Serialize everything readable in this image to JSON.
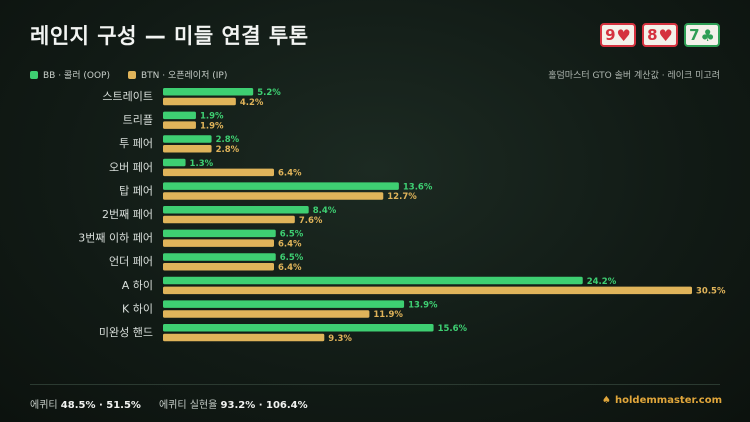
{
  "title": "레인지 구성 — 미들 연결 투톤",
  "board": [
    {
      "rank": "9",
      "suit": "♥",
      "color": "#d5323f"
    },
    {
      "rank": "8",
      "suit": "♥",
      "color": "#d5323f"
    },
    {
      "rank": "7",
      "suit": "♣",
      "color": "#2f9e55"
    }
  ],
  "note": "홀덤마스터 GTO 솔버 계산값 · 레이크 미고려",
  "chart_data": {
    "type": "bar",
    "orientation": "horizontal",
    "categories": [
      "스트레이트",
      "트리플",
      "투 페어",
      "오버 페어",
      "탑 페어",
      "2번째 페어",
      "3번째 이하 페어",
      "언더 페어",
      "A 하이",
      "K 하이",
      "미완성 핸드"
    ],
    "series": [
      {
        "name": "BB · 콜러 (OOP)",
        "color": "#3ecf72",
        "values": [
          5.2,
          1.9,
          2.8,
          1.3,
          13.6,
          8.4,
          6.5,
          6.5,
          24.2,
          13.9,
          15.6
        ]
      },
      {
        "name": "BTN · 오픈레이저 (IP)",
        "color": "#e0b45a",
        "values": [
          4.2,
          1.9,
          2.8,
          6.4,
          12.7,
          7.6,
          6.4,
          6.4,
          30.5,
          11.9,
          9.3
        ]
      }
    ],
    "value_suffix": "%",
    "xlim": [
      0,
      30.5
    ],
    "legend_position": "top-left",
    "grid": false
  },
  "footer": {
    "equity_label": "에퀴티",
    "equity_values": "48.5% · 51.5%",
    "realization_label": "에퀴티 실현율",
    "realization_values": "93.2% · 106.4%"
  },
  "brand": {
    "icon": "spade-icon",
    "text": "holdemmaster.com"
  }
}
